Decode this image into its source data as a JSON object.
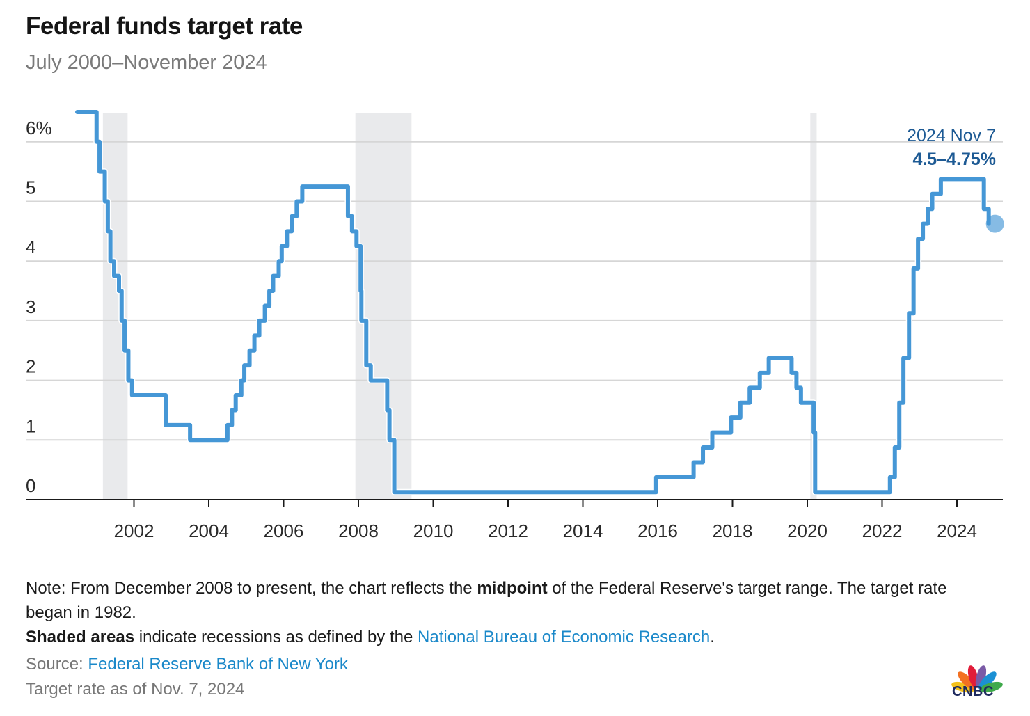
{
  "header": {
    "title": "Federal funds target rate",
    "subtitle": "July 2000–November 2024"
  },
  "chart_data": {
    "type": "line",
    "step": true,
    "title": "Federal funds target rate",
    "subtitle": "July 2000–November 2024",
    "xlabel": "",
    "ylabel": "",
    "ylim": [
      0,
      6.5
    ],
    "xlim": [
      2000.0,
      2025.1
    ],
    "grid": true,
    "y_ticks": [
      {
        "value": 0,
        "label": "0"
      },
      {
        "value": 1,
        "label": "1"
      },
      {
        "value": 2,
        "label": "2"
      },
      {
        "value": 3,
        "label": "3"
      },
      {
        "value": 4,
        "label": "4"
      },
      {
        "value": 5,
        "label": "5"
      },
      {
        "value": 6,
        "label": "6%"
      }
    ],
    "x_ticks": [
      {
        "value": 2002,
        "label": "2002"
      },
      {
        "value": 2004,
        "label": "2004"
      },
      {
        "value": 2006,
        "label": "2006"
      },
      {
        "value": 2008,
        "label": "2008"
      },
      {
        "value": 2010,
        "label": "2010"
      },
      {
        "value": 2012,
        "label": "2012"
      },
      {
        "value": 2014,
        "label": "2014"
      },
      {
        "value": 2016,
        "label": "2016"
      },
      {
        "value": 2018,
        "label": "2018"
      },
      {
        "value": 2020,
        "label": "2020"
      },
      {
        "value": 2022,
        "label": "2022"
      },
      {
        "value": 2024,
        "label": "2024"
      }
    ],
    "recessions": [
      {
        "start": 2001.17,
        "end": 2001.83
      },
      {
        "start": 2007.92,
        "end": 2009.42
      },
      {
        "start": 2020.08,
        "end": 2020.25
      }
    ],
    "series": [
      {
        "name": "Federal funds target rate",
        "color": "#4597d6",
        "points": [
          [
            2000.5,
            6.5
          ],
          [
            2001.0,
            6.0
          ],
          [
            2001.08,
            5.5
          ],
          [
            2001.22,
            5.0
          ],
          [
            2001.3,
            4.5
          ],
          [
            2001.37,
            4.0
          ],
          [
            2001.47,
            3.75
          ],
          [
            2001.6,
            3.5
          ],
          [
            2001.67,
            3.0
          ],
          [
            2001.75,
            2.5
          ],
          [
            2001.85,
            2.0
          ],
          [
            2001.95,
            1.75
          ],
          [
            2002.85,
            1.25
          ],
          [
            2003.5,
            1.0
          ],
          [
            2004.5,
            1.25
          ],
          [
            2004.62,
            1.5
          ],
          [
            2004.72,
            1.75
          ],
          [
            2004.87,
            2.0
          ],
          [
            2004.95,
            2.25
          ],
          [
            2005.09,
            2.5
          ],
          [
            2005.22,
            2.75
          ],
          [
            2005.35,
            3.0
          ],
          [
            2005.5,
            3.25
          ],
          [
            2005.62,
            3.5
          ],
          [
            2005.72,
            3.75
          ],
          [
            2005.87,
            4.0
          ],
          [
            2005.95,
            4.25
          ],
          [
            2006.09,
            4.5
          ],
          [
            2006.22,
            4.75
          ],
          [
            2006.35,
            5.0
          ],
          [
            2006.5,
            5.25
          ],
          [
            2007.72,
            4.75
          ],
          [
            2007.83,
            4.5
          ],
          [
            2007.95,
            4.25
          ],
          [
            2008.06,
            3.5
          ],
          [
            2008.08,
            3.0
          ],
          [
            2008.21,
            2.25
          ],
          [
            2008.33,
            2.0
          ],
          [
            2008.77,
            1.5
          ],
          [
            2008.83,
            1.0
          ],
          [
            2008.96,
            0.125
          ],
          [
            2015.96,
            0.375
          ],
          [
            2016.96,
            0.625
          ],
          [
            2017.21,
            0.875
          ],
          [
            2017.46,
            1.125
          ],
          [
            2017.96,
            1.375
          ],
          [
            2018.21,
            1.625
          ],
          [
            2018.46,
            1.875
          ],
          [
            2018.73,
            2.125
          ],
          [
            2018.97,
            2.375
          ],
          [
            2019.58,
            2.125
          ],
          [
            2019.71,
            1.875
          ],
          [
            2019.83,
            1.625
          ],
          [
            2020.17,
            1.125
          ],
          [
            2020.21,
            0.125
          ],
          [
            2022.21,
            0.375
          ],
          [
            2022.34,
            0.875
          ],
          [
            2022.46,
            1.625
          ],
          [
            2022.57,
            2.375
          ],
          [
            2022.72,
            3.125
          ],
          [
            2022.84,
            3.875
          ],
          [
            2022.96,
            4.375
          ],
          [
            2023.09,
            4.625
          ],
          [
            2023.22,
            4.875
          ],
          [
            2023.34,
            5.125
          ],
          [
            2023.57,
            5.375
          ],
          [
            2024.72,
            4.875
          ],
          [
            2024.85,
            4.625
          ]
        ]
      }
    ],
    "annotations": [
      {
        "x": 2024.85,
        "y": 4.625,
        "date_label": "2024 Nov 7",
        "value_label": "4.5–4.75%",
        "color": "#1d5a94"
      }
    ]
  },
  "notes": {
    "line1_pre": "Note: From December 2008 to present, the chart reflects the ",
    "line1_bold": "midpoint",
    "line1_post": " of the Federal Reserve's target range. The target rate began in 1982.",
    "line2_bold": "Shaded areas",
    "line2_pre": " indicate recessions as defined by the ",
    "line2_link": "National Bureau of Economic Research",
    "line2_post": "."
  },
  "source": {
    "label": "Source: ",
    "link": "Federal Reserve Bank of New York"
  },
  "asof": "Target rate as of Nov. 7, 2024",
  "logo": {
    "text": "CNBC",
    "feather_colors": [
      "#f4c11b",
      "#f37021",
      "#e11c39",
      "#7a5aa6",
      "#1b90d4",
      "#3fa94b"
    ]
  }
}
